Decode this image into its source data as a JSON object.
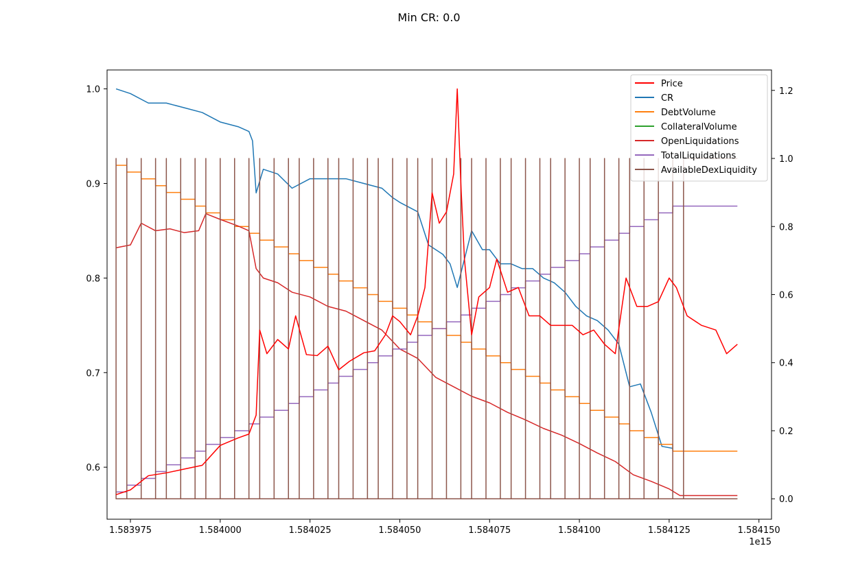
{
  "chart_data": {
    "type": "line",
    "title": "Min CR: 0.0",
    "x_offset_label": "1e15",
    "xlim": [
      1.5839685,
      1.5841535
    ],
    "x_ticks": [
      1.583975,
      1.584,
      1.584025,
      1.58405,
      1.584075,
      1.5841,
      1.584125,
      1.58415
    ],
    "x_tick_labels": [
      "1.583975",
      "1.584000",
      "1.584025",
      "1.584050",
      "1.584075",
      "1.584100",
      "1.584125",
      "1.584150"
    ],
    "ylim_left": [
      0.545,
      1.02
    ],
    "y_left_ticks": [
      0.6,
      0.7,
      0.8,
      0.9,
      1.0
    ],
    "y_left_tick_labels": [
      "0.6",
      "0.7",
      "0.8",
      "0.9",
      "1.0"
    ],
    "ylim_right": [
      -0.06,
      1.26
    ],
    "y_right_ticks": [
      0.0,
      0.2,
      0.4,
      0.6,
      0.8,
      1.0,
      1.2
    ],
    "y_right_tick_labels": [
      "0.0",
      "0.2",
      "0.4",
      "0.6",
      "0.8",
      "1.0",
      "1.2"
    ],
    "grid": false,
    "legend_position": "top-right",
    "series": [
      {
        "name": "Price",
        "color": "#ff0000",
        "axis": "left",
        "kind": "line",
        "x": [
          1.583971,
          1.583975,
          1.58398,
          1.583985,
          1.58399,
          1.583995,
          1.584,
          1.584005,
          1.584008,
          1.58401,
          1.584011,
          1.584013,
          1.584016,
          1.584019,
          1.584021,
          1.584024,
          1.584027,
          1.58403,
          1.584033,
          1.584036,
          1.58404,
          1.584043,
          1.584046,
          1.584048,
          1.58405,
          1.584053,
          1.584055,
          1.584057,
          1.584059,
          1.584061,
          1.584063,
          1.584065,
          1.584066,
          1.584067,
          1.584068,
          1.58407,
          1.584072,
          1.584075,
          1.584077,
          1.58408,
          1.584083,
          1.584086,
          1.584089,
          1.584092,
          1.584095,
          1.584098,
          1.584101,
          1.584104,
          1.584107,
          1.58411,
          1.584113,
          1.584116,
          1.584119,
          1.584122,
          1.584125,
          1.584127,
          1.58413,
          1.584134,
          1.584138,
          1.584141,
          1.584144
        ],
        "y": [
          0.571,
          0.576,
          0.591,
          0.594,
          0.598,
          0.602,
          0.623,
          0.631,
          0.635,
          0.655,
          0.745,
          0.72,
          0.735,
          0.725,
          0.76,
          0.719,
          0.718,
          0.728,
          0.703,
          0.712,
          0.721,
          0.723,
          0.74,
          0.76,
          0.754,
          0.74,
          0.76,
          0.79,
          0.89,
          0.858,
          0.87,
          0.91,
          1.0,
          0.9,
          0.82,
          0.74,
          0.78,
          0.79,
          0.82,
          0.785,
          0.79,
          0.76,
          0.76,
          0.75,
          0.75,
          0.75,
          0.74,
          0.745,
          0.73,
          0.72,
          0.8,
          0.77,
          0.77,
          0.775,
          0.8,
          0.79,
          0.76,
          0.75,
          0.745,
          0.72,
          0.73
        ]
      },
      {
        "name": "CR",
        "color": "#1f77b4",
        "axis": "left",
        "kind": "line",
        "x": [
          1.583971,
          1.583975,
          1.58398,
          1.583985,
          1.58399,
          1.583995,
          1.584,
          1.584005,
          1.584008,
          1.584009,
          1.58401,
          1.584012,
          1.584016,
          1.58402,
          1.584025,
          1.58403,
          1.584035,
          1.58404,
          1.584045,
          1.584048,
          1.58405,
          1.584055,
          1.584058,
          1.58406,
          1.584062,
          1.584064,
          1.584066,
          1.584068,
          1.58407,
          1.584073,
          1.584075,
          1.584078,
          1.584081,
          1.584084,
          1.584087,
          1.58409,
          1.584093,
          1.584096,
          1.584099,
          1.584102,
          1.584105,
          1.584108,
          1.584111,
          1.584114,
          1.584117,
          1.58412,
          1.584123,
          1.584126
        ],
        "y": [
          1.0,
          0.995,
          0.985,
          0.985,
          0.98,
          0.975,
          0.965,
          0.96,
          0.955,
          0.945,
          0.89,
          0.915,
          0.91,
          0.895,
          0.905,
          0.905,
          0.905,
          0.9,
          0.895,
          0.885,
          0.88,
          0.87,
          0.835,
          0.83,
          0.825,
          0.815,
          0.79,
          0.82,
          0.85,
          0.83,
          0.83,
          0.815,
          0.815,
          0.81,
          0.81,
          0.8,
          0.795,
          0.785,
          0.77,
          0.76,
          0.755,
          0.745,
          0.73,
          0.685,
          0.688,
          0.658,
          0.622,
          0.62
        ]
      },
      {
        "name": "DebtVolume",
        "color": "#ff7f0e",
        "axis": "right",
        "kind": "staircase",
        "x": [
          1.583971,
          1.583974,
          1.583978,
          1.583982,
          1.583985,
          1.583989,
          1.583993,
          1.583996,
          1.584,
          1.584004,
          1.584008,
          1.584011,
          1.584015,
          1.584019,
          1.584022,
          1.584026,
          1.58403,
          1.584033,
          1.584037,
          1.584041,
          1.584044,
          1.584048,
          1.584052,
          1.584055,
          1.584059,
          1.584063,
          1.584067,
          1.58407,
          1.584074,
          1.584078,
          1.584081,
          1.584085,
          1.584089,
          1.584092,
          1.584096,
          1.5841,
          1.584103,
          1.584107,
          1.584111,
          1.584114,
          1.584118,
          1.584122,
          1.584126,
          1.584144
        ],
        "y": [
          0.98,
          0.96,
          0.94,
          0.92,
          0.9,
          0.88,
          0.86,
          0.84,
          0.82,
          0.8,
          0.78,
          0.76,
          0.74,
          0.72,
          0.7,
          0.68,
          0.66,
          0.64,
          0.62,
          0.6,
          0.58,
          0.56,
          0.54,
          0.52,
          0.5,
          0.48,
          0.46,
          0.44,
          0.42,
          0.4,
          0.38,
          0.36,
          0.34,
          0.32,
          0.3,
          0.28,
          0.26,
          0.24,
          0.22,
          0.2,
          0.18,
          0.16,
          0.14,
          0.14
        ]
      },
      {
        "name": "CollateralVolume",
        "color": "#2ca02c",
        "axis": "right",
        "kind": "line",
        "x": [
          1.583971,
          1.584144
        ],
        "y": [
          0.0,
          0.0
        ]
      },
      {
        "name": "OpenLiquidations",
        "color": "#d62728",
        "axis": "left",
        "kind": "line",
        "x": [
          1.583971,
          1.583975,
          1.583978,
          1.583982,
          1.583986,
          1.58399,
          1.583994,
          1.583996,
          1.584,
          1.584005,
          1.584008,
          1.58401,
          1.584012,
          1.584016,
          1.58402,
          1.584025,
          1.58403,
          1.584035,
          1.58404,
          1.584045,
          1.58405,
          1.584055,
          1.58406,
          1.584065,
          1.58407,
          1.584075,
          1.58408,
          1.584085,
          1.58409,
          1.584095,
          1.5841,
          1.584105,
          1.58411,
          1.584115,
          1.58412,
          1.584125,
          1.584128,
          1.584144
        ],
        "y": [
          0.832,
          0.835,
          0.858,
          0.85,
          0.852,
          0.848,
          0.85,
          0.868,
          0.862,
          0.855,
          0.85,
          0.81,
          0.8,
          0.795,
          0.785,
          0.78,
          0.77,
          0.765,
          0.755,
          0.745,
          0.725,
          0.715,
          0.695,
          0.685,
          0.675,
          0.668,
          0.658,
          0.65,
          0.641,
          0.634,
          0.625,
          0.615,
          0.606,
          0.592,
          0.585,
          0.577,
          0.57,
          0.57
        ]
      },
      {
        "name": "TotalLiquidations",
        "color": "#9467bd",
        "axis": "right",
        "kind": "staircase",
        "x": [
          1.583971,
          1.583974,
          1.583978,
          1.583982,
          1.583985,
          1.583989,
          1.583993,
          1.583996,
          1.584,
          1.584004,
          1.584008,
          1.584011,
          1.584015,
          1.584019,
          1.584022,
          1.584026,
          1.58403,
          1.584033,
          1.584037,
          1.584041,
          1.584044,
          1.584048,
          1.584052,
          1.584055,
          1.584059,
          1.584063,
          1.584067,
          1.58407,
          1.584074,
          1.584078,
          1.584081,
          1.584085,
          1.584089,
          1.584092,
          1.584096,
          1.5841,
          1.584103,
          1.584107,
          1.584111,
          1.584114,
          1.584118,
          1.584122,
          1.584126,
          1.584144
        ],
        "y": [
          0.02,
          0.04,
          0.06,
          0.08,
          0.1,
          0.12,
          0.14,
          0.16,
          0.18,
          0.2,
          0.22,
          0.24,
          0.26,
          0.28,
          0.3,
          0.32,
          0.34,
          0.36,
          0.38,
          0.4,
          0.42,
          0.44,
          0.46,
          0.48,
          0.5,
          0.52,
          0.54,
          0.56,
          0.58,
          0.6,
          0.62,
          0.64,
          0.66,
          0.68,
          0.7,
          0.72,
          0.74,
          0.76,
          0.78,
          0.8,
          0.82,
          0.84,
          0.86,
          0.86
        ]
      },
      {
        "name": "AvailableDexLiquidity",
        "color": "#8c564b",
        "axis": "right",
        "kind": "pulses",
        "baseline": 0.0,
        "peak": 1.0,
        "x": [
          1.583971,
          1.583974,
          1.583978,
          1.583982,
          1.583985,
          1.583989,
          1.583993,
          1.583996,
          1.584,
          1.584004,
          1.584008,
          1.584011,
          1.584015,
          1.584019,
          1.584022,
          1.584026,
          1.58403,
          1.584033,
          1.584037,
          1.584041,
          1.584044,
          1.584048,
          1.584052,
          1.584055,
          1.584059,
          1.584063,
          1.584067,
          1.58407,
          1.584074,
          1.584078,
          1.584081,
          1.584085,
          1.584089,
          1.584092,
          1.584096,
          1.5841,
          1.584103,
          1.584107,
          1.584111,
          1.584114,
          1.584118,
          1.584122,
          1.584126,
          1.584129
        ],
        "final_level": 1.0,
        "final_x_end": 1.584144
      }
    ]
  }
}
